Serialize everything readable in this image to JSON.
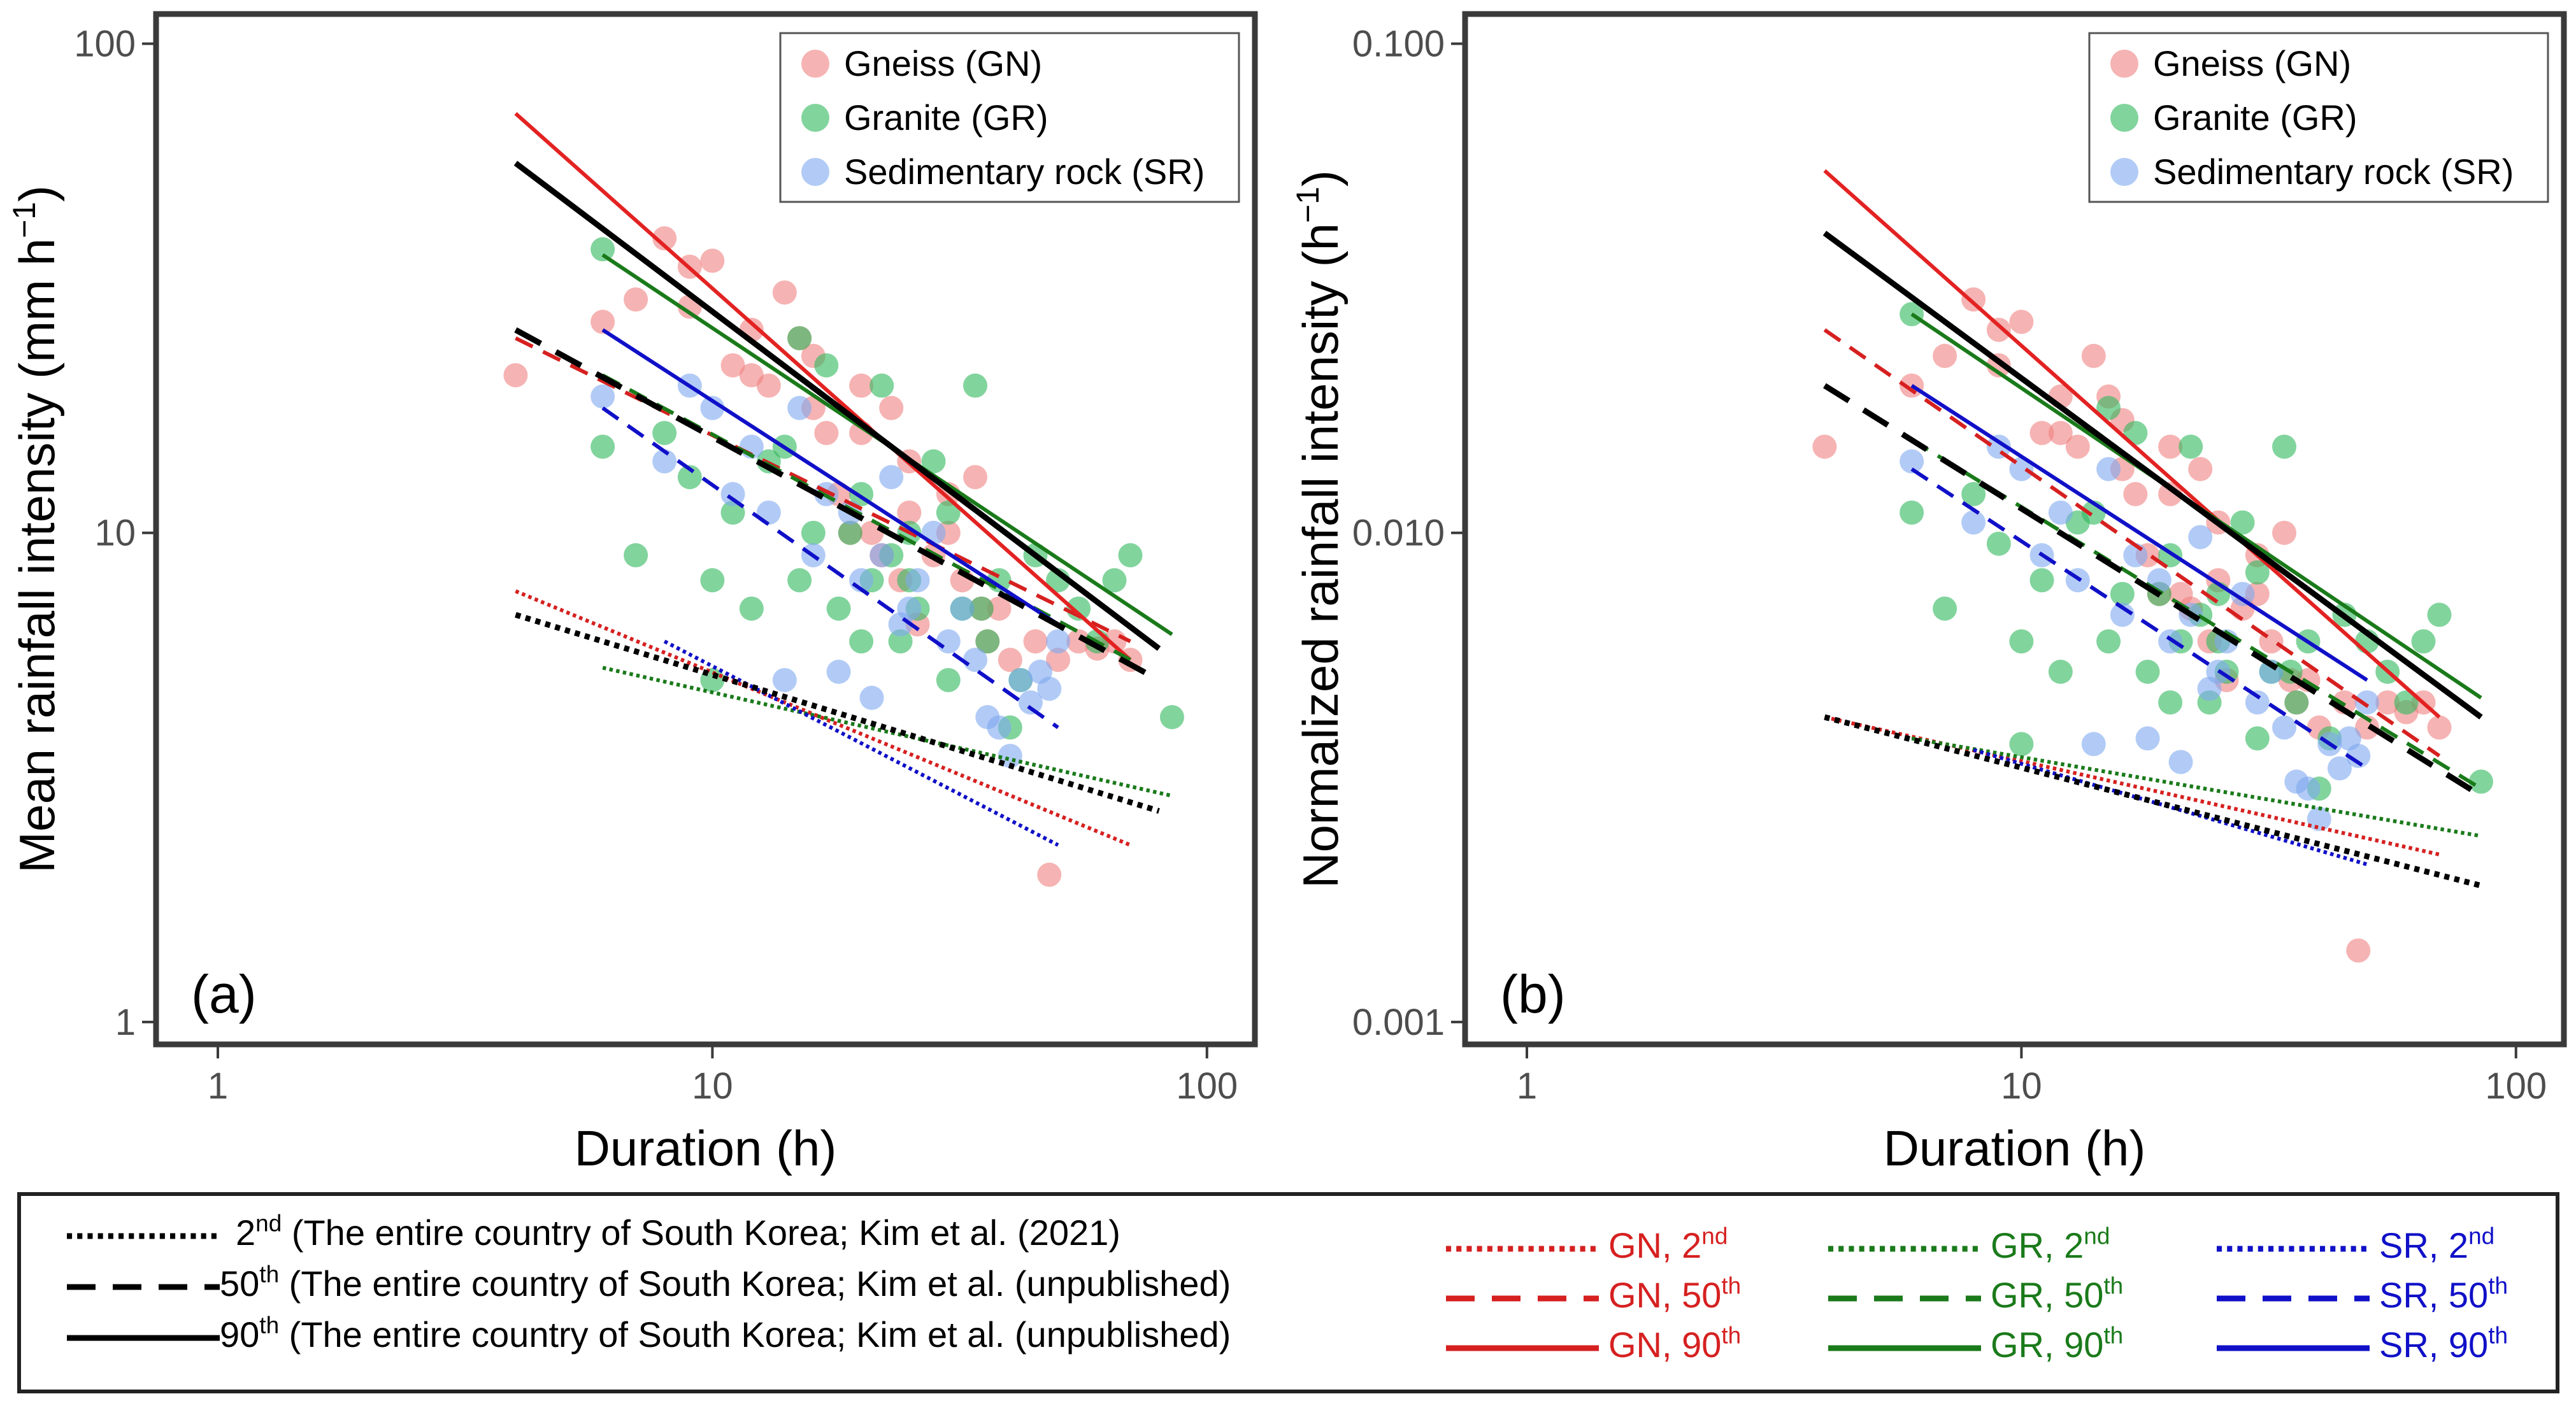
{
  "chart_data": [
    {
      "type": "scatter",
      "panel_label": "(a)",
      "xlabel": "Duration (h)",
      "ylabel": "Mean rainfall intensity (mm h",
      "ylabel_sup": "−1",
      "ylabel_close": ")",
      "xscale": "log",
      "yscale": "log",
      "xlim": [
        0.75,
        125
      ],
      "ylim": [
        0.9,
        115
      ],
      "xticks": [
        {
          "v": 1,
          "label": "1"
        },
        {
          "v": 10,
          "label": "10"
        },
        {
          "v": 100,
          "label": "100"
        }
      ],
      "yticks": [
        {
          "v": 1,
          "label": "1"
        },
        {
          "v": 10,
          "label": "10"
        },
        {
          "v": 100,
          "label": "100"
        }
      ],
      "grid": false,
      "legend_position": "top-right",
      "legend": [
        {
          "name": "Gneiss (GN)",
          "color": "#f08080"
        },
        {
          "name": "Granite (GR)",
          "color": "#2eb85c"
        },
        {
          "name": "Sedimentary rock (SR)",
          "color": "#7fa8f0"
        }
      ],
      "series": [
        {
          "name": "Gneiss (GN)",
          "color": "#f08080",
          "x": [
            4,
            6,
            7,
            8,
            9,
            10,
            11,
            12,
            13,
            14,
            15,
            16,
            17,
            18,
            19,
            20,
            21,
            22,
            23,
            24,
            25,
            26,
            28,
            30,
            32,
            34,
            36,
            38,
            40,
            45,
            50,
            55,
            60,
            65,
            70,
            9,
            12,
            16,
            20,
            25,
            30,
            35,
            48
          ],
          "y": [
            21,
            27,
            30,
            40,
            35,
            36,
            22,
            21,
            20,
            31,
            25,
            23,
            16,
            12,
            10,
            20,
            10,
            9,
            18,
            8,
            11,
            6.5,
            9,
            10,
            8,
            13,
            6,
            7,
            5.5,
            6,
            5.5,
            6,
            5.8,
            6,
            5.5,
            29,
            26,
            18,
            16,
            14,
            12,
            7,
            2
          ]
        },
        {
          "name": "Granite (GR)",
          "color": "#2eb85c",
          "x": [
            6,
            6,
            7,
            8,
            9,
            10,
            11,
            12,
            13,
            14,
            15,
            16,
            17,
            18,
            19,
            20,
            21,
            22,
            23,
            24,
            25,
            26,
            28,
            30,
            32,
            34,
            36,
            38,
            40,
            42,
            45,
            50,
            55,
            60,
            65,
            70,
            85,
            10,
            15,
            20,
            25,
            30,
            35
          ],
          "y": [
            38,
            15,
            9,
            16,
            13,
            8,
            11,
            7,
            14,
            15,
            25,
            10,
            22,
            7,
            10,
            12,
            8,
            20,
            9,
            6,
            8,
            7,
            14,
            5,
            7,
            20,
            6,
            8,
            4,
            5,
            9,
            8,
            7,
            6,
            8,
            9,
            4.2,
            5,
            8,
            6,
            10,
            11,
            7
          ]
        },
        {
          "name": "Sedimentary rock (SR)",
          "color": "#7fa8f0",
          "x": [
            6,
            8,
            9,
            10,
            11,
            12,
            13,
            14,
            15,
            16,
            17,
            18,
            19,
            20,
            21,
            22,
            23,
            24,
            25,
            26,
            28,
            30,
            32,
            34,
            36,
            38,
            40,
            42,
            44,
            46,
            48,
            50
          ],
          "y": [
            19,
            14,
            20,
            18,
            12,
            15,
            11,
            5,
            18,
            9,
            12,
            5.2,
            11,
            8,
            4.6,
            9,
            13,
            6.5,
            7,
            8,
            10,
            6,
            7,
            5.5,
            4.2,
            4,
            3.5,
            5,
            4.5,
            5.2,
            4.8,
            6
          ]
        }
      ],
      "lines": [
        {
          "name": "GN, 2nd",
          "color": "#d62020",
          "style": "dotted",
          "x": [
            4,
            70
          ],
          "y": [
            7.6,
            2.3
          ]
        },
        {
          "name": "GN, 50th",
          "color": "#d62020",
          "style": "dashed",
          "x": [
            4,
            70
          ],
          "y": [
            25,
            6
          ]
        },
        {
          "name": "GN, 90th",
          "color": "#e32222",
          "style": "solid",
          "x": [
            4,
            70
          ],
          "y": [
            72,
            5.5
          ]
        },
        {
          "name": "GR, 2nd",
          "color": "#1a7a1a",
          "style": "dotted",
          "x": [
            6,
            85
          ],
          "y": [
            5.3,
            2.9
          ]
        },
        {
          "name": "GR, 50th",
          "color": "#1a7a1a",
          "style": "dashed",
          "x": [
            6,
            70
          ],
          "y": [
            21,
            5.5
          ]
        },
        {
          "name": "GR, 90th",
          "color": "#1a7a1a",
          "style": "solid",
          "x": [
            6,
            85
          ],
          "y": [
            37,
            6.2
          ]
        },
        {
          "name": "SR, 2nd",
          "color": "#1010c8",
          "style": "dotted",
          "x": [
            8,
            50
          ],
          "y": [
            6,
            2.3
          ]
        },
        {
          "name": "SR, 50th",
          "color": "#1010c8",
          "style": "dashed",
          "x": [
            6,
            50
          ],
          "y": [
            18,
            4
          ]
        },
        {
          "name": "SR, 90th",
          "color": "#1010c8",
          "style": "solid",
          "x": [
            6,
            50
          ],
          "y": [
            26,
            6.5
          ]
        },
        {
          "name": "2nd (entire country)",
          "color": "#000000",
          "style": "dotted",
          "x": [
            4,
            80
          ],
          "y": [
            6.8,
            2.7
          ]
        },
        {
          "name": "50th (entire country)",
          "color": "#000000",
          "style": "dashed",
          "x": [
            4,
            80
          ],
          "y": [
            26,
            5
          ]
        },
        {
          "name": "90th (entire country)",
          "color": "#000000",
          "style": "solid",
          "x": [
            4,
            80
          ],
          "y": [
            57,
            5.8
          ]
        }
      ]
    },
    {
      "type": "scatter",
      "panel_label": "(b)",
      "xlabel": "Duration (h)",
      "ylabel": "Normalized rainfall intensity (h",
      "ylabel_sup": "−1",
      "ylabel_close": ")",
      "xscale": "log",
      "yscale": "log",
      "xlim": [
        0.75,
        125
      ],
      "ylim": [
        0.0009,
        0.115
      ],
      "xticks": [
        {
          "v": 1,
          "label": "1"
        },
        {
          "v": 10,
          "label": "10"
        },
        {
          "v": 100,
          "label": "100"
        }
      ],
      "yticks": [
        {
          "v": 0.001,
          "label": "0.001"
        },
        {
          "v": 0.01,
          "label": "0.010"
        },
        {
          "v": 0.1,
          "label": "0.100"
        }
      ],
      "grid": false,
      "legend_position": "top-right",
      "legend": [
        {
          "name": "Gneiss (GN)",
          "color": "#f08080"
        },
        {
          "name": "Granite (GR)",
          "color": "#2eb85c"
        },
        {
          "name": "Sedimentary rock (SR)",
          "color": "#7fa8f0"
        }
      ],
      "series": [
        {
          "name": "Gneiss (GN)",
          "color": "#f08080",
          "x": [
            4,
            6,
            7,
            8,
            9,
            10,
            11,
            12,
            13,
            14,
            15,
            16,
            17,
            18,
            19,
            20,
            21,
            22,
            23,
            24,
            25,
            26,
            28,
            30,
            32,
            34,
            36,
            38,
            40,
            45,
            50,
            55,
            60,
            65,
            70,
            9,
            12,
            16,
            20,
            25,
            30,
            35,
            48
          ],
          "y": [
            0.015,
            0.02,
            0.023,
            0.03,
            0.026,
            0.027,
            0.016,
            0.016,
            0.015,
            0.023,
            0.019,
            0.017,
            0.012,
            0.009,
            0.0075,
            0.015,
            0.0075,
            0.007,
            0.0135,
            0.006,
            0.008,
            0.005,
            0.007,
            0.0075,
            0.006,
            0.01,
            0.0045,
            0.005,
            0.004,
            0.0045,
            0.004,
            0.0045,
            0.0043,
            0.0045,
            0.004,
            0.022,
            0.019,
            0.0135,
            0.012,
            0.0105,
            0.009,
            0.005,
            0.0014
          ]
        },
        {
          "name": "Granite (GR)",
          "color": "#2eb85c",
          "x": [
            6,
            6,
            7,
            8,
            9,
            10,
            11,
            12,
            13,
            14,
            15,
            16,
            17,
            18,
            19,
            20,
            21,
            22,
            23,
            24,
            25,
            26,
            28,
            30,
            32,
            34,
            36,
            38,
            40,
            42,
            45,
            50,
            55,
            60,
            65,
            70,
            85,
            10,
            15,
            20,
            25,
            30,
            35
          ],
          "y": [
            0.028,
            0.011,
            0.007,
            0.012,
            0.0095,
            0.006,
            0.008,
            0.0052,
            0.0105,
            0.011,
            0.018,
            0.0075,
            0.016,
            0.0052,
            0.0075,
            0.009,
            0.006,
            0.015,
            0.0068,
            0.0045,
            0.006,
            0.0052,
            0.0105,
            0.0038,
            0.0052,
            0.015,
            0.0045,
            0.006,
            0.003,
            0.0038,
            0.0068,
            0.006,
            0.0052,
            0.0045,
            0.006,
            0.0068,
            0.0031,
            0.0037,
            0.006,
            0.0045,
            0.0075,
            0.0083,
            0.0052
          ]
        },
        {
          "name": "Sedimentary rock (SR)",
          "color": "#7fa8f0",
          "x": [
            6,
            8,
            9,
            10,
            11,
            12,
            13,
            14,
            15,
            16,
            17,
            18,
            19,
            20,
            21,
            22,
            23,
            24,
            25,
            26,
            28,
            30,
            32,
            34,
            36,
            38,
            40,
            42,
            44,
            46,
            48,
            50
          ],
          "y": [
            0.014,
            0.0105,
            0.015,
            0.0135,
            0.009,
            0.011,
            0.008,
            0.0037,
            0.0135,
            0.0068,
            0.009,
            0.0038,
            0.008,
            0.006,
            0.0034,
            0.0068,
            0.0098,
            0.0048,
            0.0052,
            0.006,
            0.0075,
            0.0045,
            0.0052,
            0.004,
            0.0031,
            0.003,
            0.0026,
            0.0037,
            0.0033,
            0.0038,
            0.0035,
            0.0045
          ]
        }
      ],
      "lines": [
        {
          "name": "GN, 2nd",
          "color": "#d62020",
          "style": "dotted",
          "x": [
            4,
            70
          ],
          "y": [
            0.0042,
            0.0022
          ]
        },
        {
          "name": "GN, 50th",
          "color": "#d62020",
          "style": "dashed",
          "x": [
            4,
            70
          ],
          "y": [
            0.026,
            0.0035
          ]
        },
        {
          "name": "GN, 90th",
          "color": "#e32222",
          "style": "solid",
          "x": [
            4,
            70
          ],
          "y": [
            0.055,
            0.0042
          ]
        },
        {
          "name": "GR, 2nd",
          "color": "#1a7a1a",
          "style": "dotted",
          "x": [
            6,
            85
          ],
          "y": [
            0.0038,
            0.0024
          ]
        },
        {
          "name": "GR, 50th",
          "color": "#1a7a1a",
          "style": "dashed",
          "x": [
            6,
            85
          ],
          "y": [
            0.0155,
            0.003
          ]
        },
        {
          "name": "GR, 90th",
          "color": "#1a7a1a",
          "style": "solid",
          "x": [
            6,
            85
          ],
          "y": [
            0.028,
            0.0046
          ]
        },
        {
          "name": "SR, 2nd",
          "color": "#1010c8",
          "style": "dotted",
          "x": [
            8,
            50
          ],
          "y": [
            0.0036,
            0.0021
          ]
        },
        {
          "name": "SR, 50th",
          "color": "#1010c8",
          "style": "dashed",
          "x": [
            6,
            50
          ],
          "y": [
            0.0135,
            0.0033
          ]
        },
        {
          "name": "SR, 90th",
          "color": "#1010c8",
          "style": "solid",
          "x": [
            6,
            50
          ],
          "y": [
            0.02,
            0.005
          ]
        },
        {
          "name": "2nd (entire country)",
          "color": "#000000",
          "style": "dotted",
          "x": [
            4,
            85
          ],
          "y": [
            0.0042,
            0.0019
          ]
        },
        {
          "name": "50th (entire country)",
          "color": "#000000",
          "style": "dashed",
          "x": [
            4,
            85
          ],
          "y": [
            0.02,
            0.0029
          ]
        },
        {
          "name": "90th (entire country)",
          "color": "#000000",
          "style": "solid",
          "x": [
            4,
            85
          ],
          "y": [
            0.041,
            0.0042
          ]
        }
      ]
    }
  ],
  "bottom_legend": {
    "national": [
      {
        "sup": "nd",
        "lead": "2",
        "text": " (The entire country of South Korea; Kim et al. (2021)",
        "style": "dotted"
      },
      {
        "sup": "th",
        "lead": "50",
        "text": " (The entire country of South Korea; Kim et al. (unpublished)",
        "style": "dashed"
      },
      {
        "sup": "th",
        "lead": "90",
        "text": " (The entire country of South Korea; Kim et al. (unpublished)",
        "style": "solid"
      }
    ],
    "columns": [
      {
        "color": "#d62020",
        "items": [
          {
            "lead": "GN, 2",
            "sup": "nd",
            "style": "dotted"
          },
          {
            "lead": "GN, 50",
            "sup": "th",
            "style": "dashed"
          },
          {
            "lead": "GN, 90",
            "sup": "th",
            "style": "solid"
          }
        ]
      },
      {
        "color": "#1a7a1a",
        "items": [
          {
            "lead": "GR, 2",
            "sup": "nd",
            "style": "dotted"
          },
          {
            "lead": "GR, 50",
            "sup": "th",
            "style": "dashed"
          },
          {
            "lead": "GR, 90",
            "sup": "th",
            "style": "solid"
          }
        ]
      },
      {
        "color": "#1010c8",
        "items": [
          {
            "lead": "SR, 2",
            "sup": "nd",
            "style": "dotted"
          },
          {
            "lead": "SR, 50",
            "sup": "th",
            "style": "dashed"
          },
          {
            "lead": "SR, 90",
            "sup": "th",
            "style": "solid"
          }
        ]
      }
    ]
  }
}
